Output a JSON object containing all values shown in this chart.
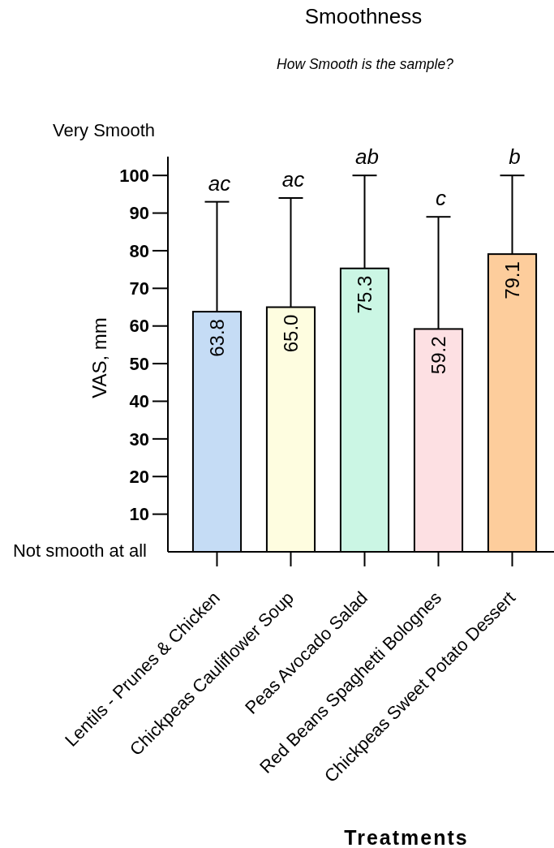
{
  "chart_data": {
    "type": "bar",
    "title": "Smoothness",
    "subtitle": "How Smooth is the sample?",
    "xlabel": "Treatments",
    "ylabel": "VAS, mm",
    "categories": [
      "Lentils - Prunes & Chicken",
      "Chickpeas Cauliflower Soup",
      "Peas Avocado Salad",
      "Red Beans Spaghetti Bolognes",
      "Chickpeas Sweet Potato Dessert"
    ],
    "values": [
      63.8,
      65.0,
      75.3,
      59.2,
      79.1
    ],
    "colors": [
      "#c5dcf5",
      "#fefde0",
      "#cbf6e4",
      "#fde0e3",
      "#fdcd9c"
    ],
    "value_labels": [
      "63.8",
      "65.0",
      "75.3",
      "59.2",
      "79.1"
    ],
    "errors": [
      [
        63.8,
        93
      ],
      [
        65.0,
        94
      ],
      [
        75.3,
        100
      ],
      [
        59.2,
        89
      ],
      [
        79.1,
        100
      ]
    ],
    "ylim": [
      0,
      105
    ],
    "yticks": [
      10,
      20,
      30,
      40,
      50,
      60,
      70,
      80,
      90,
      100
    ],
    "annotations": [
      "Very Smooth",
      "Not smooth at all",
      {
        "text": "ac",
        "x": "Lentils - Prunes & Chicken",
        "y": 93
      },
      {
        "text": "ac",
        "x": "Chickpeas Cauliflower Soup",
        "y": 94
      },
      {
        "text": "ab",
        "x": "Peas Avocado Salad",
        "y": 100
      },
      {
        "text": "c",
        "x": "Red Beans Spaghetti Bolognes",
        "y": 89
      },
      {
        "text": "b",
        "x": "Chickpeas Sweet Potato Dessert",
        "y": 100
      }
    ]
  }
}
